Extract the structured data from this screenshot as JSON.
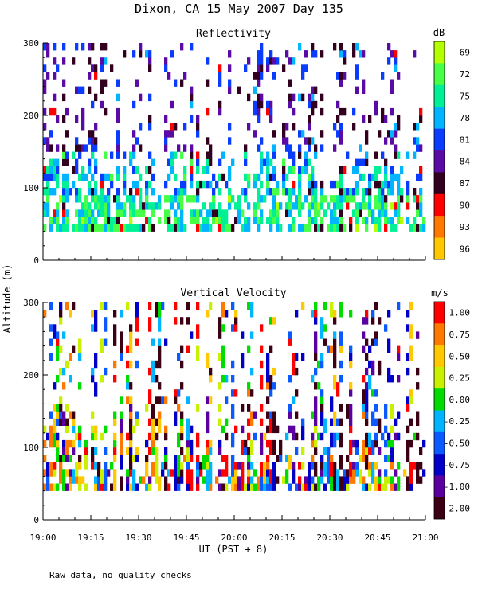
{
  "title": "Dixon, CA 15 May 2007  Day 135",
  "ylabel": "Altitude (m)",
  "xlabel": "UT  (PST + 8)",
  "footnote": "Raw data, no quality checks",
  "colors": {
    "background": "#ffffff",
    "axis": "#000000",
    "text": "#000000"
  },
  "chart_data": [
    {
      "type": "heatmap",
      "title": "Reflectivity",
      "unit": "dB",
      "x_ticks": [
        "19:00",
        "19:15",
        "19:30",
        "19:45",
        "20:00",
        "20:15",
        "20:30",
        "20:45",
        "21:00"
      ],
      "x_range_minutes": [
        0,
        120
      ],
      "y_ticks": [
        "0",
        "100",
        "200",
        "300"
      ],
      "y_range": [
        0,
        300
      ],
      "data_floor_m": 40,
      "colorbar": {
        "labels": [
          "69",
          "72",
          "75",
          "78",
          "81",
          "84",
          "87",
          "90",
          "93",
          "96"
        ],
        "colors": [
          "#b4ff00",
          "#46ff46",
          "#00f096",
          "#00b4ff",
          "#0a3cff",
          "#5a0aa5",
          "#32001e",
          "#ff0000",
          "#ff7800",
          "#ffc800"
        ]
      },
      "profile": [
        [
          40,
          0.3
        ],
        [
          80,
          0.5
        ],
        [
          120,
          0.75
        ],
        [
          160,
          0.95
        ],
        [
          200,
          1.0
        ],
        [
          240,
          1.0
        ],
        [
          300,
          1.0
        ]
      ],
      "visual_summary": "Dense echoes from 40 m to about 120 m across the whole period, mostly 75-84 dB (green, cyan, blue), with sparse streaks up to 300 m in the 84-87 dB range (purple)."
    },
    {
      "type": "heatmap",
      "title": "Vertical Velocity",
      "unit": "m/s",
      "x_ticks": [
        "19:00",
        "19:15",
        "19:30",
        "19:45",
        "20:00",
        "20:15",
        "20:30",
        "20:45",
        "21:00"
      ],
      "x_range_minutes": [
        0,
        120
      ],
      "y_ticks": [
        "0",
        "100",
        "200",
        "300"
      ],
      "y_range": [
        0,
        300
      ],
      "data_floor_m": 40,
      "colorbar": {
        "labels": [
          "1.00",
          "0.75",
          "0.50",
          "0.25",
          "0.00",
          "-0.25",
          "-0.50",
          "-0.75",
          "-1.00",
          "-2.00"
        ],
        "colors": [
          "#ff0000",
          "#ff7800",
          "#ffc800",
          "#c8f000",
          "#00dc00",
          "#00b4ff",
          "#0a5aff",
          "#0000c8",
          "#5a00a0",
          "#3c0014"
        ]
      },
      "profile": [
        [
          40,
          0.4
        ],
        [
          80,
          0.6
        ],
        [
          120,
          0.8
        ],
        [
          160,
          0.95
        ],
        [
          200,
          1.0
        ],
        [
          240,
          1.0
        ],
        [
          300,
          1.0
        ]
      ],
      "visual_summary": "Vertical velocity mixed between about -1 and +1 m/s; strongest updrafts (red, orange, yellow) near 19:30-19:40, around 20:05-20:15 and in streaks after 20:35."
    }
  ]
}
